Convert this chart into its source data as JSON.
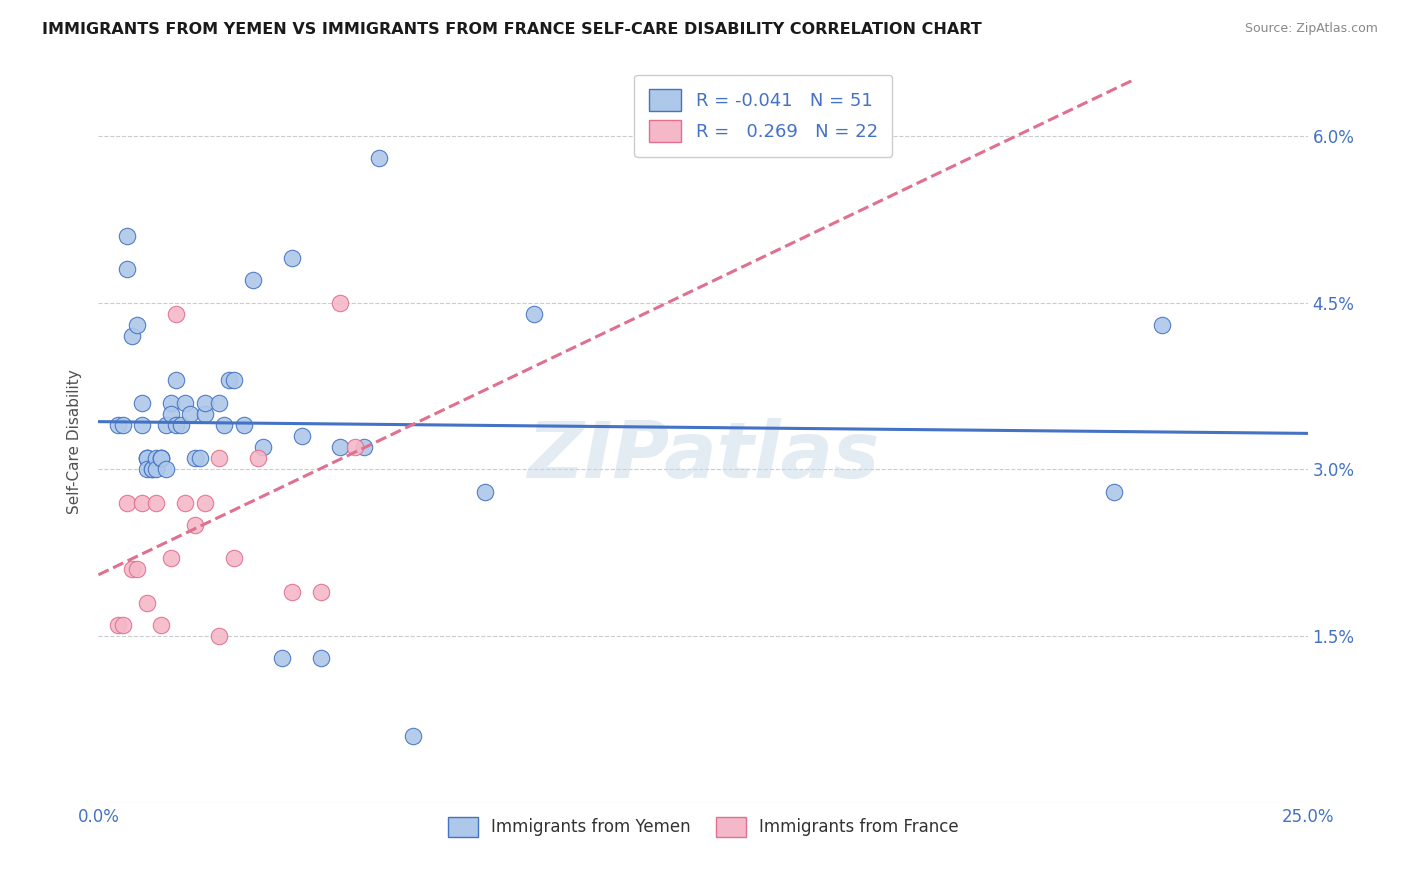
{
  "title": "IMMIGRANTS FROM YEMEN VS IMMIGRANTS FROM FRANCE SELF-CARE DISABILITY CORRELATION CHART",
  "source": "Source: ZipAtlas.com",
  "ylabel": "Self-Care Disability",
  "xmin": 0.0,
  "xmax": 0.25,
  "ymin": 0.0,
  "ymax": 0.065,
  "yticks": [
    0.0,
    0.015,
    0.03,
    0.045,
    0.06
  ],
  "ytick_labels": [
    "",
    "1.5%",
    "3.0%",
    "4.5%",
    "6.0%"
  ],
  "xtick_positions": [
    0.0,
    0.05,
    0.1,
    0.15,
    0.2,
    0.25
  ],
  "xtick_labels": [
    "0.0%",
    "",
    "",
    "",
    "",
    "25.0%"
  ],
  "legend_r_yemen": "-0.041",
  "legend_n_yemen": "51",
  "legend_r_france": "0.269",
  "legend_n_france": "22",
  "yemen_color": "#adc8e8",
  "france_color": "#f5b8c8",
  "yemen_line_color": "#4472c4",
  "france_line_color": "#e07090",
  "watermark": "ZIPatlas",
  "yemen_x": [
    0.004,
    0.005,
    0.006,
    0.006,
    0.007,
    0.008,
    0.009,
    0.009,
    0.01,
    0.01,
    0.01,
    0.01,
    0.011,
    0.011,
    0.012,
    0.012,
    0.013,
    0.013,
    0.013,
    0.014,
    0.014,
    0.015,
    0.015,
    0.016,
    0.016,
    0.017,
    0.018,
    0.019,
    0.02,
    0.021,
    0.022,
    0.022,
    0.025,
    0.026,
    0.027,
    0.028,
    0.03,
    0.032,
    0.034,
    0.038,
    0.04,
    0.042,
    0.046,
    0.05,
    0.055,
    0.058,
    0.065,
    0.08,
    0.09,
    0.21,
    0.22
  ],
  "yemen_y": [
    0.034,
    0.034,
    0.051,
    0.048,
    0.042,
    0.043,
    0.036,
    0.034,
    0.031,
    0.031,
    0.031,
    0.03,
    0.03,
    0.03,
    0.031,
    0.03,
    0.031,
    0.031,
    0.031,
    0.03,
    0.034,
    0.036,
    0.035,
    0.034,
    0.038,
    0.034,
    0.036,
    0.035,
    0.031,
    0.031,
    0.035,
    0.036,
    0.036,
    0.034,
    0.038,
    0.038,
    0.034,
    0.047,
    0.032,
    0.013,
    0.049,
    0.033,
    0.013,
    0.032,
    0.032,
    0.058,
    0.006,
    0.028,
    0.044,
    0.028,
    0.043
  ],
  "france_x": [
    0.004,
    0.005,
    0.006,
    0.007,
    0.008,
    0.009,
    0.01,
    0.012,
    0.013,
    0.015,
    0.016,
    0.018,
    0.02,
    0.022,
    0.025,
    0.025,
    0.028,
    0.033,
    0.04,
    0.046,
    0.05,
    0.053
  ],
  "france_y": [
    0.016,
    0.016,
    0.027,
    0.021,
    0.021,
    0.027,
    0.018,
    0.027,
    0.016,
    0.022,
    0.044,
    0.027,
    0.025,
    0.027,
    0.015,
    0.031,
    0.022,
    0.031,
    0.019,
    0.019,
    0.045,
    0.032
  ],
  "background_color": "#ffffff",
  "grid_color": "#cccccc"
}
